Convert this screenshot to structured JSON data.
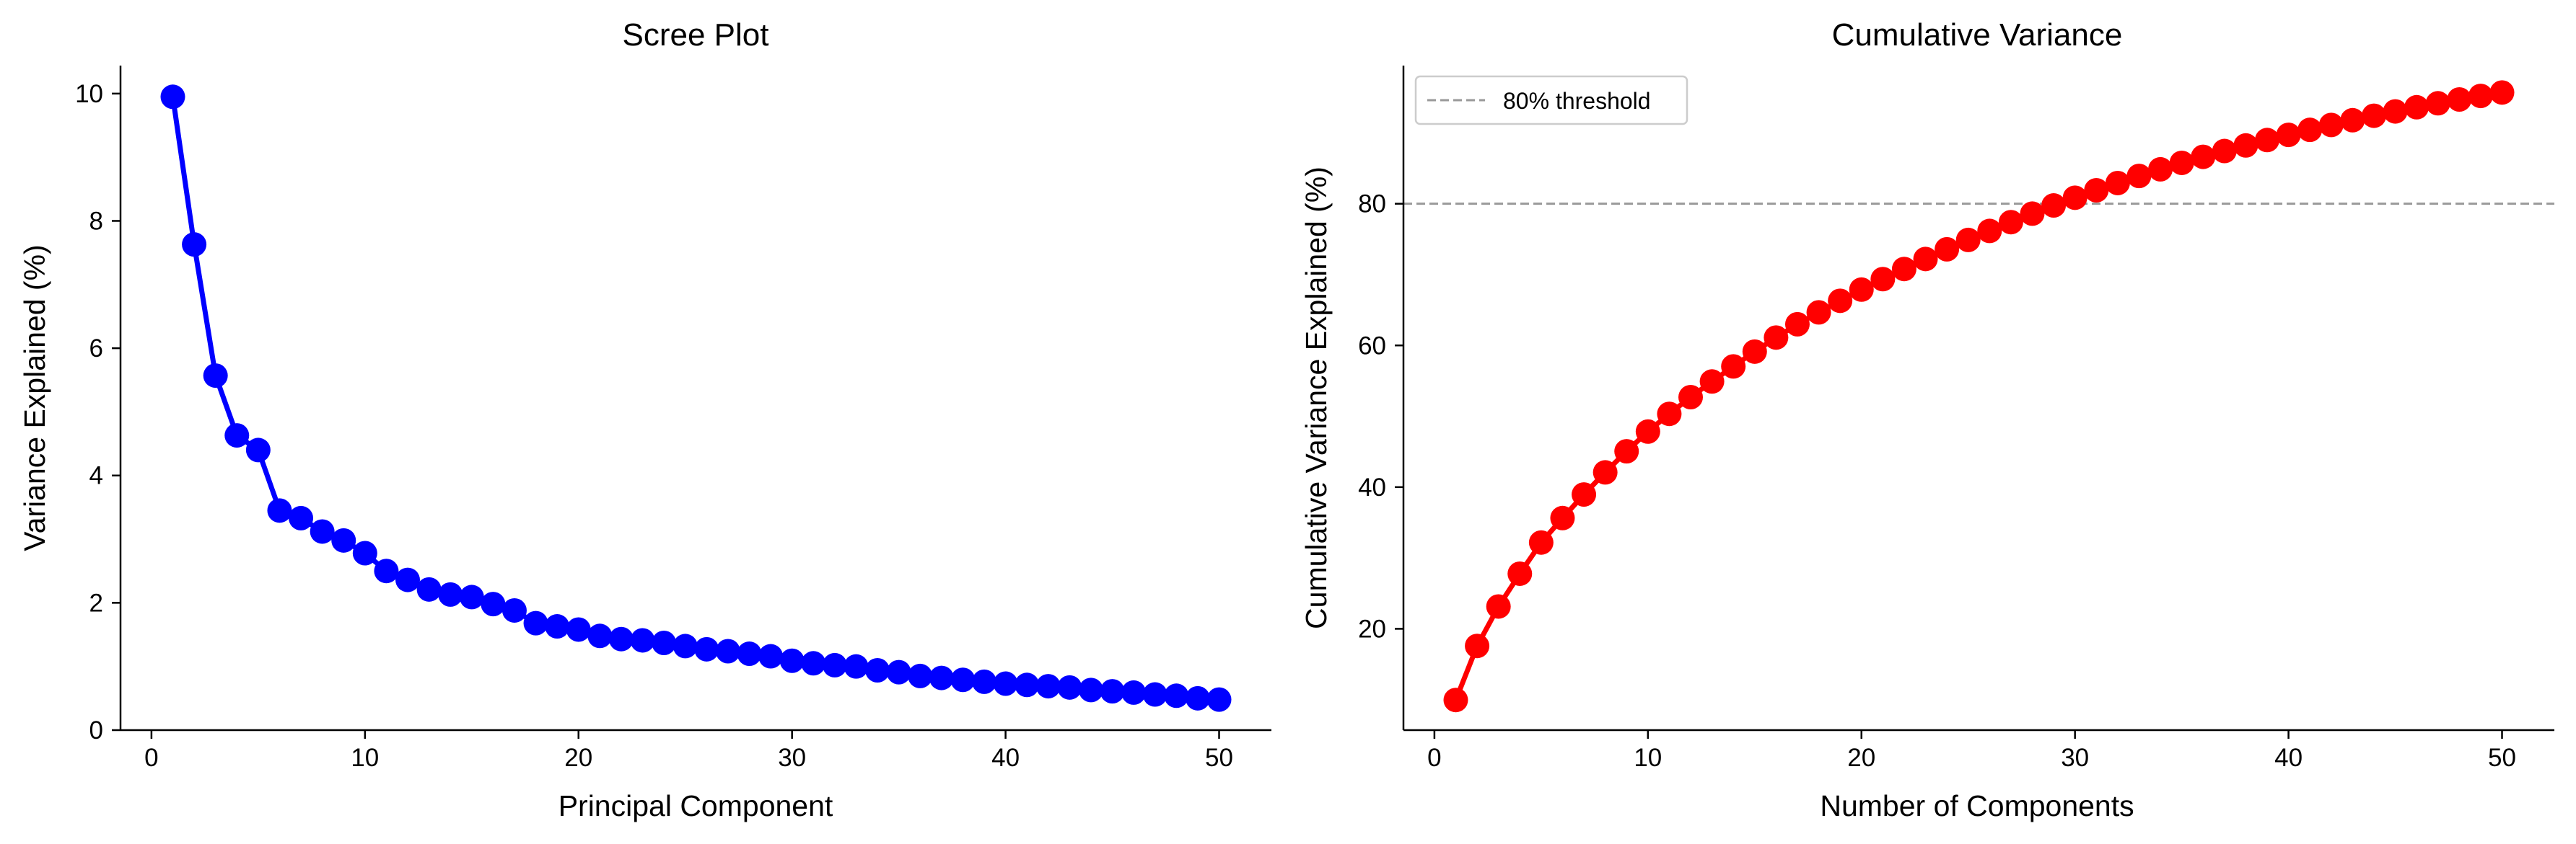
{
  "chart_data": [
    {
      "type": "line",
      "title": "Scree Plot",
      "xlabel": "Principal Component",
      "ylabel": "Variance Explained (%)",
      "xlim": [
        -1.45,
        52.45
      ],
      "ylim": [
        0,
        10.44
      ],
      "xticks": [
        0,
        10,
        20,
        30,
        40,
        50
      ],
      "yticks": [
        0,
        2,
        4,
        6,
        8,
        10
      ],
      "grid": false,
      "marker": "circle",
      "color": "#0000ff",
      "x": [
        1,
        2,
        3,
        4,
        5,
        6,
        7,
        8,
        9,
        10,
        11,
        12,
        13,
        14,
        15,
        16,
        17,
        18,
        19,
        20,
        21,
        22,
        23,
        24,
        25,
        26,
        27,
        28,
        29,
        30,
        31,
        32,
        33,
        34,
        35,
        36,
        37,
        38,
        39,
        40,
        41,
        42,
        43,
        44,
        45,
        46,
        47,
        48,
        49,
        50
      ],
      "series": [
        {
          "values": [
            9.95,
            7.63,
            5.57,
            4.63,
            4.4,
            3.45,
            3.33,
            3.12,
            2.98,
            2.78,
            2.5,
            2.36,
            2.21,
            2.13,
            2.09,
            1.98,
            1.88,
            1.68,
            1.63,
            1.58,
            1.48,
            1.43,
            1.41,
            1.37,
            1.32,
            1.27,
            1.24,
            1.2,
            1.16,
            1.09,
            1.05,
            1.02,
            1.0,
            0.94,
            0.91,
            0.85,
            0.82,
            0.79,
            0.76,
            0.73,
            0.71,
            0.69,
            0.67,
            0.63,
            0.61,
            0.59,
            0.56,
            0.54,
            0.5,
            0.48
          ]
        }
      ]
    },
    {
      "type": "line",
      "title": "Cumulative Variance",
      "xlabel": "Number of Components",
      "ylabel": "Cumulative Variance Explained (%)",
      "xlim": [
        -1.45,
        52.45
      ],
      "ylim": [
        5.7,
        99.5
      ],
      "xticks": [
        0,
        10,
        20,
        30,
        40,
        50
      ],
      "yticks": [
        20,
        40,
        60,
        80
      ],
      "grid": false,
      "marker": "circle",
      "color": "#ff0000",
      "legend_position": "top-left",
      "reference_lines": [
        {
          "y": 80,
          "label": "80% threshold",
          "color": "#999999",
          "style": "dashed"
        }
      ],
      "x": [
        1,
        2,
        3,
        4,
        5,
        6,
        7,
        8,
        9,
        10,
        11,
        12,
        13,
        14,
        15,
        16,
        17,
        18,
        19,
        20,
        21,
        22,
        23,
        24,
        25,
        26,
        27,
        28,
        29,
        30,
        31,
        32,
        33,
        34,
        35,
        36,
        37,
        38,
        39,
        40,
        41,
        42,
        43,
        44,
        45,
        46,
        47,
        48,
        49,
        50
      ],
      "series": [
        {
          "values": [
            9.95,
            17.58,
            23.15,
            27.78,
            32.18,
            35.63,
            38.96,
            42.08,
            45.06,
            47.84,
            50.34,
            52.7,
            54.91,
            57.04,
            59.13,
            61.11,
            62.99,
            64.67,
            66.3,
            67.88,
            69.36,
            70.79,
            72.2,
            73.57,
            74.89,
            76.16,
            77.4,
            78.6,
            79.76,
            80.85,
            81.9,
            82.92,
            83.92,
            84.86,
            85.77,
            86.62,
            87.44,
            88.23,
            88.99,
            89.72,
            90.43,
            91.12,
            91.79,
            92.42,
            93.03,
            93.62,
            94.18,
            94.72,
            95.22,
            95.7
          ]
        }
      ]
    }
  ]
}
